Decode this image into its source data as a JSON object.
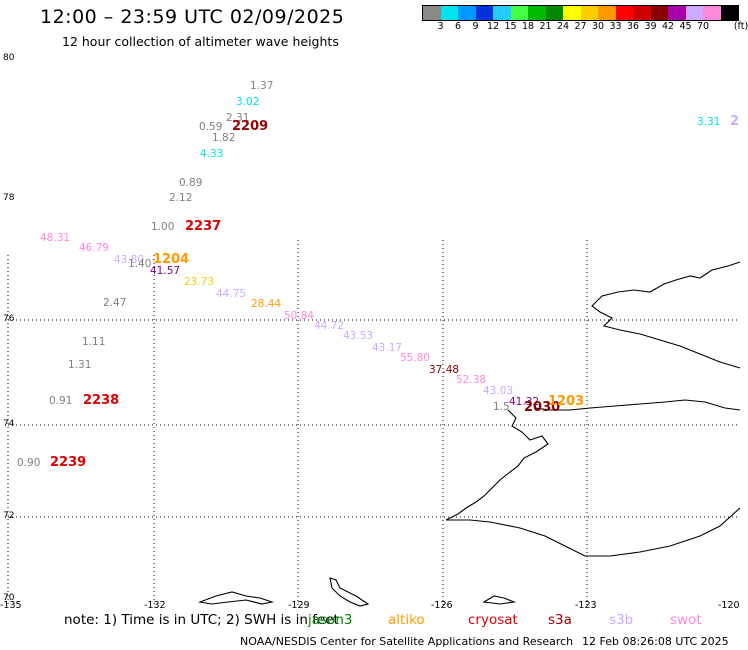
{
  "header": {
    "title": "12:00 – 23:59 UTC 02/09/2025",
    "subtitle": "12 hour collection of altimeter wave heights"
  },
  "legend": {
    "unit": "(ft)",
    "swatches": [
      {
        "color": "#888888",
        "label": ""
      },
      {
        "color": "#00e4f0",
        "label": "3"
      },
      {
        "color": "#0099ff",
        "label": "6"
      },
      {
        "color": "#0033dd",
        "label": "9"
      },
      {
        "color": "#22ccff",
        "label": "12"
      },
      {
        "color": "#44ff44",
        "label": "15"
      },
      {
        "color": "#00bb00",
        "label": "18"
      },
      {
        "color": "#008800",
        "label": "21"
      },
      {
        "color": "#ffff00",
        "label": "24"
      },
      {
        "color": "#ffcc00",
        "label": "27"
      },
      {
        "color": "#ff9900",
        "label": "30"
      },
      {
        "color": "#ff0000",
        "label": "33"
      },
      {
        "color": "#cc0000",
        "label": "36"
      },
      {
        "color": "#880000",
        "label": "39"
      },
      {
        "color": "#aa00aa",
        "label": "42"
      },
      {
        "color": "#ccaaff",
        "label": "45"
      },
      {
        "color": "#ff88dd",
        "label": "70"
      },
      {
        "color": "#000000",
        "label": ""
      }
    ]
  },
  "map": {
    "lat_labels": [
      "80",
      "78",
      "76",
      "74",
      "72",
      "70"
    ],
    "lon_labels": [
      "-135",
      "-132",
      "-129",
      "-126",
      "-123",
      "-120"
    ],
    "track_labels": [
      {
        "text": "1.37",
        "color": "#808080",
        "kind": "val"
      },
      {
        "text": "3.02",
        "color": "#00e4f0",
        "kind": "val"
      },
      {
        "text": "2.31",
        "color": "#808080",
        "kind": "val"
      },
      {
        "text": "0.59",
        "color": "#808080",
        "kind": "val"
      },
      {
        "text": "2209",
        "color": "#990000",
        "kind": "time"
      },
      {
        "text": "1.82",
        "color": "#808080",
        "kind": "val"
      },
      {
        "text": "4.33",
        "color": "#00e4f0",
        "kind": "val"
      },
      {
        "text": "0.89",
        "color": "#808080",
        "kind": "val"
      },
      {
        "text": "2.12",
        "color": "#808080",
        "kind": "val"
      },
      {
        "text": "1.00",
        "color": "#808080",
        "kind": "val"
      },
      {
        "text": "2237",
        "color": "#dd0000",
        "kind": "time"
      },
      {
        "text": "48.31",
        "color": "#ff88dd",
        "kind": "val"
      },
      {
        "text": "46.79",
        "color": "#ff88dd",
        "kind": "val"
      },
      {
        "text": "43.80",
        "color": "#ccaaff",
        "kind": "val"
      },
      {
        "text": "1.40",
        "color": "#808080",
        "kind": "val"
      },
      {
        "text": "1204",
        "color": "#ff9900",
        "kind": "time"
      },
      {
        "text": "41.57",
        "color": "#800080",
        "kind": "val"
      },
      {
        "text": "23.73",
        "color": "#ffcc00",
        "kind": "val"
      },
      {
        "text": "44.75",
        "color": "#ccaaff",
        "kind": "val"
      },
      {
        "text": "28.44",
        "color": "#ff9900",
        "kind": "val"
      },
      {
        "text": "2.47",
        "color": "#808080",
        "kind": "val"
      },
      {
        "text": "50.84",
        "color": "#ff88dd",
        "kind": "val"
      },
      {
        "text": "44.72",
        "color": "#ccaaff",
        "kind": "val"
      },
      {
        "text": "43.53",
        "color": "#ccaaff",
        "kind": "val"
      },
      {
        "text": "43.17",
        "color": "#ccaaff",
        "kind": "val"
      },
      {
        "text": "55.80",
        "color": "#ff88dd",
        "kind": "val"
      },
      {
        "text": "1.11",
        "color": "#808080",
        "kind": "val"
      },
      {
        "text": "1.31",
        "color": "#808080",
        "kind": "val"
      },
      {
        "text": "37.48",
        "color": "#880000",
        "kind": "val"
      },
      {
        "text": "52.38",
        "color": "#ff88dd",
        "kind": "val"
      },
      {
        "text": "43.03",
        "color": "#ccaaff",
        "kind": "val"
      },
      {
        "text": "0.91",
        "color": "#808080",
        "kind": "val"
      },
      {
        "text": "2238",
        "color": "#dd0000",
        "kind": "time"
      },
      {
        "text": "41.32",
        "color": "#800080",
        "kind": "val"
      },
      {
        "text": "1.5",
        "color": "#808080",
        "kind": "val"
      },
      {
        "text": "2030",
        "color": "#880000",
        "kind": "time"
      },
      {
        "text": "1203",
        "color": "#ff9900",
        "kind": "time"
      },
      {
        "text": "0.90",
        "color": "#808080",
        "kind": "val"
      },
      {
        "text": "2239",
        "color": "#dd0000",
        "kind": "time"
      },
      {
        "text": "3.31",
        "color": "#00e4f0",
        "kind": "val"
      },
      {
        "text": "2",
        "color": "#ccaaff",
        "kind": "time"
      }
    ]
  },
  "footer": {
    "note": "note:  1) Time is in UTC;  2) SWH is in feet",
    "satellites": [
      {
        "name": "jason3",
        "color": "#008800"
      },
      {
        "name": "altiko",
        "color": "#ff9900"
      },
      {
        "name": "cryosat",
        "color": "#dd0000"
      },
      {
        "name": "s3a",
        "color": "#990000"
      },
      {
        "name": "s3b",
        "color": "#ccaaff"
      },
      {
        "name": "swot",
        "color": "#ff88dd"
      }
    ],
    "credit": "NOAA/NESDIS Center for Satellite Applications and Research",
    "stamp": "12 Feb 08:26:08 UTC 2025"
  }
}
